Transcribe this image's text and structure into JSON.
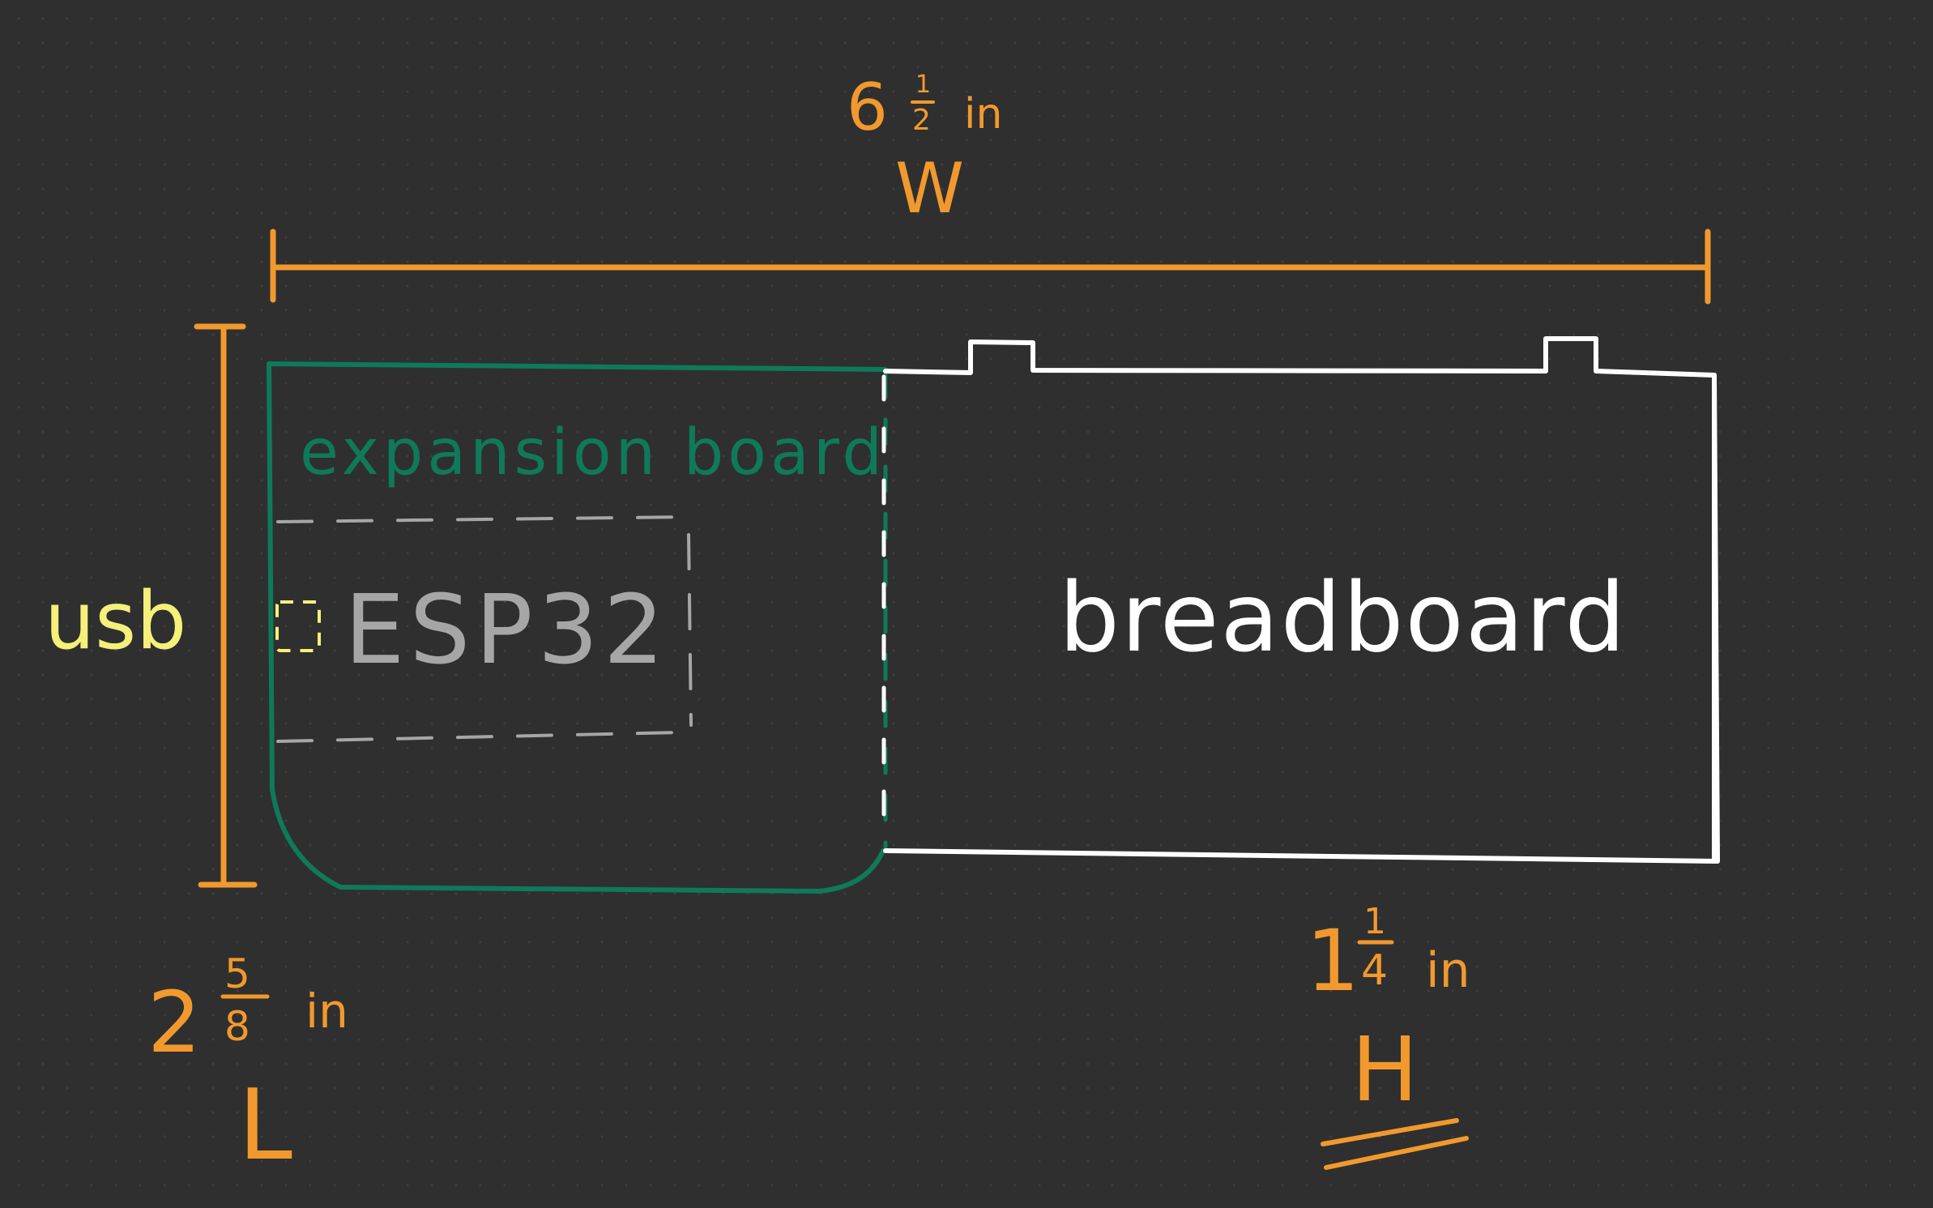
{
  "colors": {
    "background": "#2f2f2f",
    "dimension": "#f2992e",
    "usb": "#f4f07a",
    "expansion_board": "#0e7a59",
    "esp32": "#a6a6a6",
    "breadboard": "#ffffff"
  },
  "labels": {
    "width_whole": "6",
    "width_num": "1",
    "width_den": "2",
    "width_unit": "in",
    "width_letter": "W",
    "length_whole": "2",
    "length_num": "5",
    "length_den": "8",
    "length_unit": "in",
    "length_letter": "L",
    "height_whole": "1",
    "height_num": "1",
    "height_den": "4",
    "height_unit": "in",
    "height_letter": "H",
    "usb": "usb",
    "expansion_board": "expansion board",
    "esp32": "ESP32",
    "breadboard": "breadboard"
  }
}
